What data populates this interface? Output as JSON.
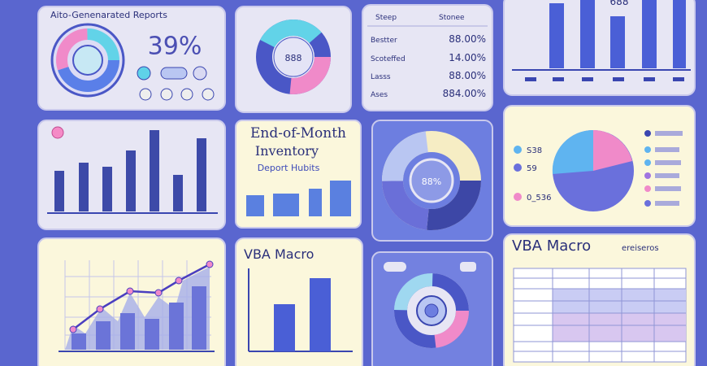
{
  "header": {
    "title": "Aito-Genenarated Reports",
    "percent": "39%"
  },
  "donut_badge": "888",
  "summary_table": {
    "heading": [
      "Steep",
      "Stonee"
    ],
    "rows": [
      {
        "label": "Bestter",
        "value": "88.00%"
      },
      {
        "label": "Scoteffed",
        "value": "14.00%"
      },
      {
        "label": "Lasss",
        "value": "88.00%"
      },
      {
        "label": "Ases",
        "value": "884.00%"
      }
    ]
  },
  "bar_card": {
    "label": "688"
  },
  "inventory_card": {
    "line1": "End-of-Month",
    "line2": "Inventory",
    "line3": "Deport Hubits"
  },
  "ring_badge": "88%",
  "pie_legend": [
    "S38",
    "59",
    "0_536"
  ],
  "vba_card": {
    "title": "VBA Macro"
  },
  "vba_table": {
    "title": "VBA Macro",
    "subtitle": "ereiseros"
  }
}
